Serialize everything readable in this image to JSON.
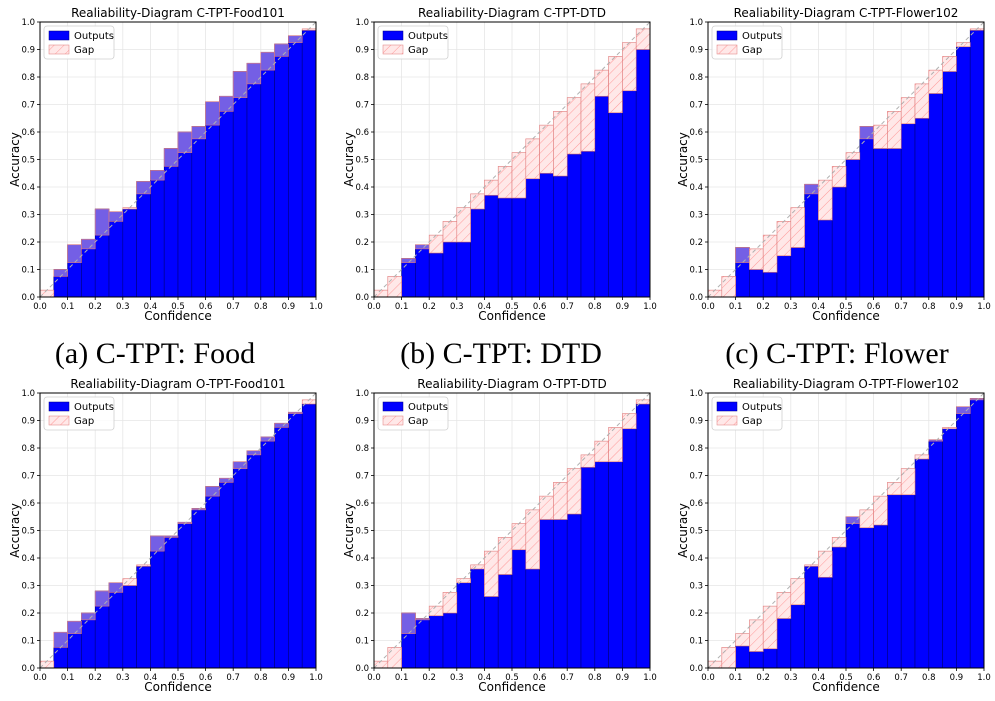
{
  "figure": {
    "captions": [
      "(a) C-TPT: Food",
      "(b) C-TPT: DTD",
      "(c) C-TPT: Flower"
    ]
  },
  "colors": {
    "outputs": "#0000ff",
    "outputs_edge": "#000080",
    "gap_hatch": "#ff9a9a",
    "gap_fill": "#ffe8e8",
    "overlap": "#7a64e4",
    "grid": "#e6e6e6",
    "diagonal": "#b0b0b0"
  },
  "chart_data": [
    {
      "type": "bar",
      "title": "Realiability-Diagram C-TPT-Food101",
      "xlabel": "Confidence",
      "ylabel": "Accuracy",
      "xlim": [
        0,
        1
      ],
      "ylim": [
        0,
        1
      ],
      "grid": true,
      "legend_position": "top-left",
      "legend": [
        "Outputs",
        "Gap"
      ],
      "bin_width": 0.05,
      "x": [
        0.025,
        0.075,
        0.125,
        0.175,
        0.225,
        0.275,
        0.325,
        0.375,
        0.425,
        0.475,
        0.525,
        0.575,
        0.625,
        0.675,
        0.725,
        0.775,
        0.825,
        0.875,
        0.925,
        0.975
      ],
      "series": [
        {
          "name": "Outputs",
          "values": [
            0,
            0.1,
            0.19,
            0.21,
            0.32,
            0.31,
            0.32,
            0.42,
            0.46,
            0.54,
            0.6,
            0.62,
            0.71,
            0.73,
            0.82,
            0.85,
            0.89,
            0.92,
            0.95,
            0.97
          ]
        },
        {
          "name": "Gap",
          "values": [
            0.025,
            0.075,
            0.125,
            0.175,
            0.225,
            0.275,
            0.325,
            0.375,
            0.425,
            0.475,
            0.525,
            0.575,
            0.625,
            0.675,
            0.725,
            0.775,
            0.825,
            0.875,
            0.925,
            0.975
          ]
        }
      ]
    },
    {
      "type": "bar",
      "title": "Realiability-Diagram C-TPT-DTD",
      "xlabel": "Confidence",
      "ylabel": "Accuracy",
      "xlim": [
        0,
        1
      ],
      "ylim": [
        0,
        1
      ],
      "grid": true,
      "legend_position": "top-left",
      "legend": [
        "Outputs",
        "Gap"
      ],
      "bin_width": 0.05,
      "x": [
        0.025,
        0.075,
        0.125,
        0.175,
        0.225,
        0.275,
        0.325,
        0.375,
        0.425,
        0.475,
        0.525,
        0.575,
        0.625,
        0.675,
        0.725,
        0.775,
        0.825,
        0.875,
        0.925,
        0.975
      ],
      "series": [
        {
          "name": "Outputs",
          "values": [
            0,
            0,
            0.14,
            0.19,
            0.16,
            0.2,
            0.2,
            0.32,
            0.37,
            0.36,
            0.36,
            0.43,
            0.45,
            0.44,
            0.52,
            0.53,
            0.73,
            0.67,
            0.75,
            0.9
          ]
        },
        {
          "name": "Gap",
          "values": [
            0.025,
            0.075,
            0.125,
            0.175,
            0.225,
            0.275,
            0.325,
            0.375,
            0.425,
            0.475,
            0.525,
            0.575,
            0.625,
            0.675,
            0.725,
            0.775,
            0.825,
            0.875,
            0.925,
            0.975
          ]
        }
      ]
    },
    {
      "type": "bar",
      "title": "Realiability-Diagram C-TPT-Flower102",
      "xlabel": "Confidence",
      "ylabel": "Accuracy",
      "xlim": [
        0,
        1
      ],
      "ylim": [
        0,
        1
      ],
      "grid": true,
      "legend_position": "top-left",
      "legend": [
        "Outputs",
        "Gap"
      ],
      "bin_width": 0.05,
      "x": [
        0.025,
        0.075,
        0.125,
        0.175,
        0.225,
        0.275,
        0.325,
        0.375,
        0.425,
        0.475,
        0.525,
        0.575,
        0.625,
        0.675,
        0.725,
        0.775,
        0.825,
        0.875,
        0.925,
        0.975
      ],
      "series": [
        {
          "name": "Outputs",
          "values": [
            0,
            0,
            0.18,
            0.1,
            0.09,
            0.15,
            0.18,
            0.41,
            0.28,
            0.4,
            0.5,
            0.62,
            0.54,
            0.54,
            0.63,
            0.65,
            0.74,
            0.82,
            0.91,
            0.97
          ]
        },
        {
          "name": "Gap",
          "values": [
            0.025,
            0.075,
            0.125,
            0.175,
            0.225,
            0.275,
            0.325,
            0.375,
            0.425,
            0.475,
            0.525,
            0.575,
            0.625,
            0.675,
            0.725,
            0.775,
            0.825,
            0.875,
            0.925,
            0.975
          ]
        }
      ]
    },
    {
      "type": "bar",
      "title": "Realiability-Diagram O-TPT-Food101",
      "xlabel": "Confidence",
      "ylabel": "Accuracy",
      "xlim": [
        0,
        1
      ],
      "ylim": [
        0,
        1
      ],
      "grid": true,
      "legend_position": "top-left",
      "legend": [
        "Outputs",
        "Gap"
      ],
      "bin_width": 0.05,
      "x": [
        0.025,
        0.075,
        0.125,
        0.175,
        0.225,
        0.275,
        0.325,
        0.375,
        0.425,
        0.475,
        0.525,
        0.575,
        0.625,
        0.675,
        0.725,
        0.775,
        0.825,
        0.875,
        0.925,
        0.975
      ],
      "series": [
        {
          "name": "Outputs",
          "values": [
            0,
            0.13,
            0.17,
            0.2,
            0.28,
            0.31,
            0.3,
            0.37,
            0.48,
            0.48,
            0.53,
            0.58,
            0.66,
            0.69,
            0.75,
            0.79,
            0.84,
            0.89,
            0.93,
            0.96
          ]
        },
        {
          "name": "Gap",
          "values": [
            0.025,
            0.075,
            0.125,
            0.175,
            0.225,
            0.275,
            0.325,
            0.375,
            0.425,
            0.475,
            0.525,
            0.575,
            0.625,
            0.675,
            0.725,
            0.775,
            0.825,
            0.875,
            0.925,
            0.975
          ]
        }
      ]
    },
    {
      "type": "bar",
      "title": "Realiability-Diagram O-TPT-DTD",
      "xlabel": "Confidence",
      "ylabel": "Accuracy",
      "xlim": [
        0,
        1
      ],
      "ylim": [
        0,
        1
      ],
      "grid": true,
      "legend_position": "top-left",
      "legend": [
        "Outputs",
        "Gap"
      ],
      "bin_width": 0.05,
      "x": [
        0.025,
        0.075,
        0.125,
        0.175,
        0.225,
        0.275,
        0.325,
        0.375,
        0.425,
        0.475,
        0.525,
        0.575,
        0.625,
        0.675,
        0.725,
        0.775,
        0.825,
        0.875,
        0.925,
        0.975
      ],
      "series": [
        {
          "name": "Outputs",
          "values": [
            0,
            0,
            0.2,
            0.18,
            0.19,
            0.2,
            0.31,
            0.36,
            0.26,
            0.34,
            0.43,
            0.36,
            0.54,
            0.54,
            0.56,
            0.73,
            0.75,
            0.75,
            0.87,
            0.96
          ]
        },
        {
          "name": "Gap",
          "values": [
            0.025,
            0.075,
            0.125,
            0.175,
            0.225,
            0.275,
            0.325,
            0.375,
            0.425,
            0.475,
            0.525,
            0.575,
            0.625,
            0.675,
            0.725,
            0.775,
            0.825,
            0.875,
            0.925,
            0.975
          ]
        }
      ]
    },
    {
      "type": "bar",
      "title": "Realiability-Diagram O-TPT-Flower102",
      "xlabel": "Confidence",
      "ylabel": "Accuracy",
      "xlim": [
        0,
        1
      ],
      "ylim": [
        0,
        1
      ],
      "grid": true,
      "legend_position": "top-left",
      "legend": [
        "Outputs",
        "Gap"
      ],
      "bin_width": 0.05,
      "x": [
        0.025,
        0.075,
        0.125,
        0.175,
        0.225,
        0.275,
        0.325,
        0.375,
        0.425,
        0.475,
        0.525,
        0.575,
        0.625,
        0.675,
        0.725,
        0.775,
        0.825,
        0.875,
        0.925,
        0.975
      ],
      "series": [
        {
          "name": "Outputs",
          "values": [
            0,
            0,
            0.08,
            0.06,
            0.07,
            0.18,
            0.23,
            0.37,
            0.33,
            0.44,
            0.55,
            0.51,
            0.52,
            0.63,
            0.63,
            0.76,
            0.83,
            0.87,
            0.95,
            0.98
          ]
        },
        {
          "name": "Gap",
          "values": [
            0.025,
            0.075,
            0.125,
            0.175,
            0.225,
            0.275,
            0.325,
            0.375,
            0.425,
            0.475,
            0.525,
            0.575,
            0.625,
            0.675,
            0.725,
            0.775,
            0.825,
            0.875,
            0.925,
            0.975
          ]
        }
      ]
    }
  ]
}
